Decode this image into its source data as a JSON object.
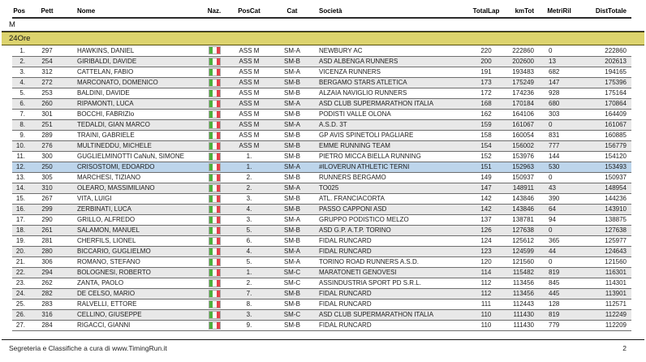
{
  "page": {
    "section_label": "M",
    "category_band_label": "24Ore",
    "footer": {
      "text": "Segreteria e Classifiche a cura di  www.TimingRun.it",
      "page_number": "2"
    },
    "colors": {
      "band_bg": "#dcd36e",
      "highlight_bg": "#bdd5eb",
      "row_alt_bg": "#e8e8e8",
      "flag_green": "#4db03c",
      "flag_red": "#e5404a"
    }
  },
  "table": {
    "columns": [
      "Pos",
      "Pett",
      "Nome",
      "Naz.",
      "PosCat",
      "Cat",
      "Società",
      "TotalLap",
      "kmTot",
      "MetriRil",
      "DistTotale"
    ],
    "flag_icon": "italy-flag-icon",
    "rows": [
      {
        "pos": "1.",
        "pett": "297",
        "nome": "HAWKINS, DANIEL",
        "poscat": "ASS M",
        "cat": "SM-A",
        "societa": "NEWBURY AC",
        "totallap": "220",
        "kmtot": "222860",
        "metriril": "0",
        "disttotale": "222860",
        "highlighted": false
      },
      {
        "pos": "2.",
        "pett": "254",
        "nome": "GIRIBALDI, DAVIDE",
        "poscat": "ASS M",
        "cat": "SM-B",
        "societa": "ASD ALBENGA RUNNERS",
        "totallap": "200",
        "kmtot": "202600",
        "metriril": "13",
        "disttotale": "202613",
        "highlighted": false
      },
      {
        "pos": "3.",
        "pett": "312",
        "nome": "CATTELAN, FABIO",
        "poscat": "ASS M",
        "cat": "SM-A",
        "societa": "VICENZA RUNNERS",
        "totallap": "191",
        "kmtot": "193483",
        "metriril": "682",
        "disttotale": "194165",
        "highlighted": false
      },
      {
        "pos": "4.",
        "pett": "272",
        "nome": "MARCONATO, DOMENICO",
        "poscat": "ASS M",
        "cat": "SM-B",
        "societa": "BERGAMO STARS ATLETICA",
        "totallap": "173",
        "kmtot": "175249",
        "metriril": "147",
        "disttotale": "175396",
        "highlighted": false
      },
      {
        "pos": "5.",
        "pett": "253",
        "nome": "BALDINI, DAVIDE",
        "poscat": "ASS M",
        "cat": "SM-B",
        "societa": "ALZAIA  NAVIGLIO RUNNERS",
        "totallap": "172",
        "kmtot": "174236",
        "metriril": "928",
        "disttotale": "175164",
        "highlighted": false
      },
      {
        "pos": "6.",
        "pett": "260",
        "nome": "RIPAMONTI, LUCA",
        "poscat": "ASS M",
        "cat": "SM-A",
        "societa": "ASD CLUB SUPERMARATHON ITALIA",
        "totallap": "168",
        "kmtot": "170184",
        "metriril": "680",
        "disttotale": "170864",
        "highlighted": false
      },
      {
        "pos": "7.",
        "pett": "301",
        "nome": "BOCCHI, FABRIZIo",
        "poscat": "ASS M",
        "cat": "SM-B",
        "societa": "PODISTI VALLE OLONA",
        "totallap": "162",
        "kmtot": "164106",
        "metriril": "303",
        "disttotale": "164409",
        "highlighted": false
      },
      {
        "pos": "8.",
        "pett": "251",
        "nome": "TEDALDI, GIAN MARCO",
        "poscat": "ASS M",
        "cat": "SM-A",
        "societa": "A.S.D. 3T",
        "totallap": "159",
        "kmtot": "161067",
        "metriril": "0",
        "disttotale": "161067",
        "highlighted": false
      },
      {
        "pos": "9.",
        "pett": "289",
        "nome": "TRAINI, GABRIELE",
        "poscat": "ASS M",
        "cat": "SM-B",
        "societa": "GP AVIS SPINETOLI PAGLIARE",
        "totallap": "158",
        "kmtot": "160054",
        "metriril": "831",
        "disttotale": "160885",
        "highlighted": false
      },
      {
        "pos": "10.",
        "pett": "276",
        "nome": "MULTINEDDU, MICHELE",
        "poscat": "ASS M",
        "cat": "SM-B",
        "societa": "EMME RUNNING TEAM",
        "totallap": "154",
        "kmtot": "156002",
        "metriril": "777",
        "disttotale": "156779",
        "highlighted": false
      },
      {
        "pos": "11.",
        "pett": "300",
        "nome": "GUGLIELMINOTTI CaNuN, SIMONE",
        "poscat": "1.",
        "cat": "SM-B",
        "societa": "PIETRO MICCA BIELLA RUNNING",
        "totallap": "152",
        "kmtot": "153976",
        "metriril": "144",
        "disttotale": "154120",
        "highlighted": false
      },
      {
        "pos": "12.",
        "pett": "250",
        "nome": "CRISOSTOMI, EDOARDO",
        "poscat": "1.",
        "cat": "SM-A",
        "societa": "#ILOVERUN ATHLETIC TERNI",
        "totallap": "151",
        "kmtot": "152963",
        "metriril": "530",
        "disttotale": "153493",
        "highlighted": true
      },
      {
        "pos": "13.",
        "pett": "305",
        "nome": "MARCHESI, TIZIANO",
        "poscat": "2.",
        "cat": "SM-B",
        "societa": "RUNNERS BERGAMO",
        "totallap": "149",
        "kmtot": "150937",
        "metriril": "0",
        "disttotale": "150937",
        "highlighted": false
      },
      {
        "pos": "14.",
        "pett": "310",
        "nome": "OLEARO, MASSIMILIANO",
        "poscat": "2.",
        "cat": "SM-A",
        "societa": "TO025",
        "totallap": "147",
        "kmtot": "148911",
        "metriril": "43",
        "disttotale": "148954",
        "highlighted": false
      },
      {
        "pos": "15.",
        "pett": "267",
        "nome": "VITA, LUIGI",
        "poscat": "3.",
        "cat": "SM-B",
        "societa": "ATL. FRANCIACORTA",
        "totallap": "142",
        "kmtot": "143846",
        "metriril": "390",
        "disttotale": "144236",
        "highlighted": false
      },
      {
        "pos": "16.",
        "pett": "299",
        "nome": "ZERBINATI, LUCA",
        "poscat": "4.",
        "cat": "SM-B",
        "societa": "PASSO CAPPONI ASD",
        "totallap": "142",
        "kmtot": "143846",
        "metriril": "64",
        "disttotale": "143910",
        "highlighted": false
      },
      {
        "pos": "17.",
        "pett": "290",
        "nome": "GRILLO, ALFREDO",
        "poscat": "3.",
        "cat": "SM-A",
        "societa": "GRUPPO  PODISTICO  MELZO",
        "totallap": "137",
        "kmtot": "138781",
        "metriril": "94",
        "disttotale": "138875",
        "highlighted": false
      },
      {
        "pos": "18.",
        "pett": "261",
        "nome": "SALAMON, MANUEL",
        "poscat": "5.",
        "cat": "SM-B",
        "societa": "ASD G.P. A.T.P. TORINO",
        "totallap": "126",
        "kmtot": "127638",
        "metriril": "0",
        "disttotale": "127638",
        "highlighted": false
      },
      {
        "pos": "19.",
        "pett": "281",
        "nome": "CHERFILS, LIONEL",
        "poscat": "6.",
        "cat": "SM-B",
        "societa": "FIDAL RUNCARD",
        "totallap": "124",
        "kmtot": "125612",
        "metriril": "365",
        "disttotale": "125977",
        "highlighted": false
      },
      {
        "pos": "20.",
        "pett": "280",
        "nome": "BICCARIO, GUGLIELMO",
        "poscat": "4.",
        "cat": "SM-A",
        "societa": "FIDAL RUNCARD",
        "totallap": "123",
        "kmtot": "124599",
        "metriril": "44",
        "disttotale": "124643",
        "highlighted": false
      },
      {
        "pos": "21.",
        "pett": "306",
        "nome": "ROMANO, STEFANO",
        "poscat": "5.",
        "cat": "SM-A",
        "societa": "TORINO ROAD RUNNERS A.S.D.",
        "totallap": "120",
        "kmtot": "121560",
        "metriril": "0",
        "disttotale": "121560",
        "highlighted": false
      },
      {
        "pos": "22.",
        "pett": "294",
        "nome": "BOLOGNESI, ROBERTO",
        "poscat": "1.",
        "cat": "SM-C",
        "societa": "MARATONETI GENOVESI",
        "totallap": "114",
        "kmtot": "115482",
        "metriril": "819",
        "disttotale": "116301",
        "highlighted": false
      },
      {
        "pos": "23.",
        "pett": "262",
        "nome": "ZANTA, PAOLO",
        "poscat": "2.",
        "cat": "SM-C",
        "societa": "ASSINDUSTRIA SPORT PD S.R.L.",
        "totallap": "112",
        "kmtot": "113456",
        "metriril": "845",
        "disttotale": "114301",
        "highlighted": false
      },
      {
        "pos": "24.",
        "pett": "282",
        "nome": "DE CELSO, MARIO",
        "poscat": "7.",
        "cat": "SM-B",
        "societa": "FIDAL RUNCARD",
        "totallap": "112",
        "kmtot": "113456",
        "metriril": "445",
        "disttotale": "113901",
        "highlighted": false
      },
      {
        "pos": "25.",
        "pett": "283",
        "nome": "RALVELLI, ETTORE",
        "poscat": "8.",
        "cat": "SM-B",
        "societa": "FIDAL RUNCARD",
        "totallap": "111",
        "kmtot": "112443",
        "metriril": "128",
        "disttotale": "112571",
        "highlighted": false
      },
      {
        "pos": "26.",
        "pett": "316",
        "nome": "CELLINO, GIUSEPPE",
        "poscat": "3.",
        "cat": "SM-C",
        "societa": "ASD CLUB SUPERMARATHON ITALIA",
        "totallap": "110",
        "kmtot": "111430",
        "metriril": "819",
        "disttotale": "112249",
        "highlighted": false
      },
      {
        "pos": "27.",
        "pett": "284",
        "nome": "RIGACCI, GIANNI",
        "poscat": "9.",
        "cat": "SM-B",
        "societa": "FIDAL RUNCARD",
        "totallap": "110",
        "kmtot": "111430",
        "metriril": "779",
        "disttotale": "112209",
        "highlighted": false
      }
    ]
  }
}
